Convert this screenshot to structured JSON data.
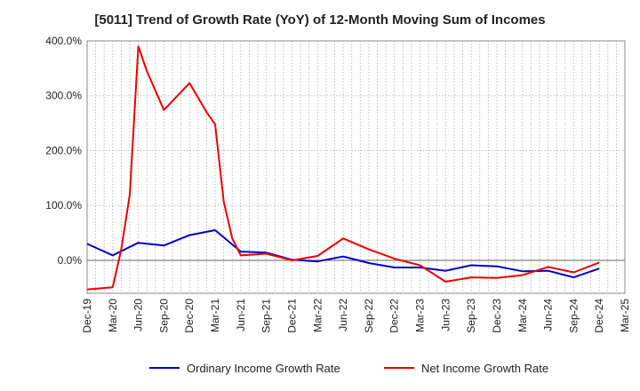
{
  "chart_data": {
    "type": "line",
    "title": "[5011]  Trend of Growth Rate (YoY) of 12-Month Moving Sum of Incomes",
    "xlabel": "",
    "ylabel": "",
    "ylim": [
      -60,
      400
    ],
    "y_ticks": [
      "400.0%",
      "300.0%",
      "200.0%",
      "100.0%",
      "0.0%"
    ],
    "y_tick_values": [
      400,
      300,
      200,
      100,
      0
    ],
    "x_ticks": [
      "Dec-19",
      "Mar-20",
      "Jun-20",
      "Sep-20",
      "Dec-20",
      "Mar-21",
      "Jun-21",
      "Sep-21",
      "Dec-21",
      "Mar-22",
      "Jun-22",
      "Sep-22",
      "Dec-22",
      "Mar-23",
      "Jun-23",
      "Sep-23",
      "Dec-23",
      "Mar-24",
      "Jun-24",
      "Sep-24",
      "Dec-24",
      "Mar-25"
    ],
    "grid": true,
    "legend_position": "bottom",
    "series": [
      {
        "name": "Ordinary Income Growth Rate",
        "color": "#0000cc",
        "x": [
          "Dec-19",
          "Mar-20",
          "Jun-20",
          "Sep-20",
          "Dec-20",
          "Mar-21",
          "Jun-21",
          "Sep-21",
          "Dec-21",
          "Mar-22",
          "Jun-22",
          "Sep-22",
          "Dec-22",
          "Mar-23",
          "Jun-23",
          "Sep-23",
          "Dec-23",
          "Mar-24",
          "Jun-24",
          "Sep-24",
          "Dec-24"
        ],
        "values": [
          30,
          9,
          32,
          27,
          46,
          55,
          16,
          14,
          1,
          -2,
          7,
          -5,
          -13,
          -13,
          -19,
          -9,
          -11,
          -20,
          -19,
          -31,
          -15
        ]
      },
      {
        "name": "Net Income Growth Rate",
        "color": "#ee0000",
        "x": [
          "Dec-19",
          "Mar-20",
          "Apr-20",
          "May-20",
          "Jun-20",
          "Jul-20",
          "Sep-20",
          "Dec-20",
          "Feb-21",
          "Mar-21",
          "Apr-21",
          "May-21",
          "Jun-21",
          "Sep-21",
          "Dec-21",
          "Mar-22",
          "Jun-22",
          "Sep-22",
          "Dec-22",
          "Mar-23",
          "Jun-23",
          "Sep-23",
          "Dec-23",
          "Mar-24",
          "Jun-24",
          "Sep-24",
          "Dec-24"
        ],
        "values": [
          -53,
          -49,
          20,
          120,
          390,
          345,
          274,
          323,
          270,
          248,
          107,
          40,
          9,
          12,
          0,
          8,
          40,
          20,
          3,
          -9,
          -39,
          -31,
          -32,
          -27,
          -12,
          -22,
          -4
        ]
      }
    ]
  }
}
